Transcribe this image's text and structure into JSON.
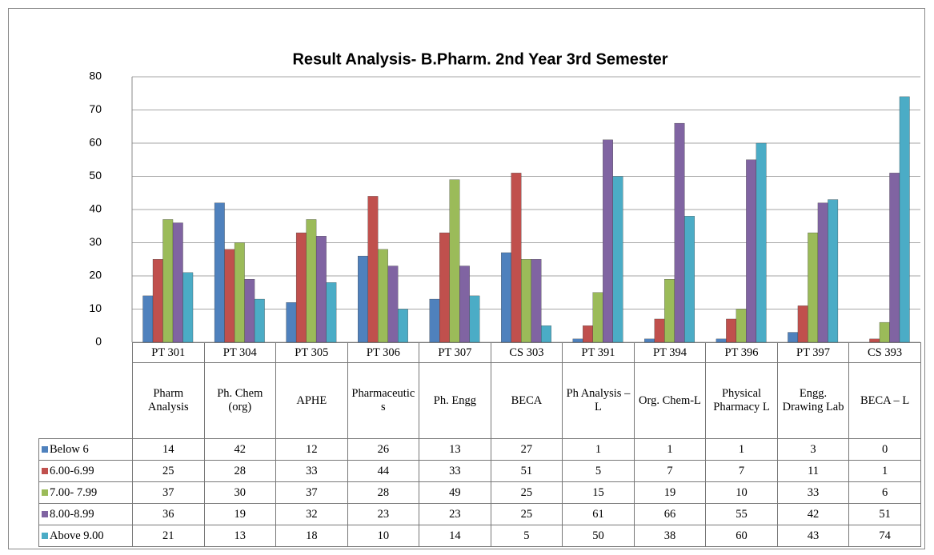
{
  "chart_data": {
    "type": "bar",
    "title": "Result Analysis- B.Pharm. 2nd Year 3rd Semester",
    "categories": [
      "PT 301",
      "PT 304",
      "PT 305",
      "PT 306",
      "PT 307",
      "CS 303",
      "PT 391",
      "PT 394",
      "PT 396",
      "PT 397",
      "CS 393"
    ],
    "subcategories": [
      "Pharm Analysis",
      "Ph. Chem (org)",
      "APHE",
      "Pharmaceutics",
      "Ph. Engg",
      "BECA",
      "Ph Analysis –L",
      "Org. Chem-L",
      "Physical Pharmacy L",
      "Engg. Drawing Lab",
      "BECA – L"
    ],
    "series": [
      {
        "name": "Below 6",
        "color": "#4f81bd",
        "values": [
          14,
          42,
          12,
          26,
          13,
          27,
          1,
          1,
          1,
          3,
          0
        ]
      },
      {
        "name": "6.00-6.99",
        "color": "#c0504d",
        "values": [
          25,
          28,
          33,
          44,
          33,
          51,
          5,
          7,
          7,
          11,
          1
        ]
      },
      {
        "name": "7.00- 7.99",
        "color": "#9bbb59",
        "values": [
          37,
          30,
          37,
          28,
          49,
          25,
          15,
          19,
          10,
          33,
          6
        ]
      },
      {
        "name": "8.00-8.99",
        "color": "#8064a2",
        "values": [
          36,
          19,
          32,
          23,
          23,
          25,
          61,
          66,
          55,
          42,
          51
        ]
      },
      {
        "name": "Above 9.00",
        "color": "#4bacc6",
        "values": [
          21,
          13,
          18,
          10,
          14,
          5,
          50,
          38,
          60,
          43,
          74
        ]
      }
    ],
    "ylim": [
      0,
      80
    ],
    "yticks": [
      0,
      10,
      20,
      30,
      40,
      50,
      60,
      70,
      80
    ],
    "grid": true
  }
}
